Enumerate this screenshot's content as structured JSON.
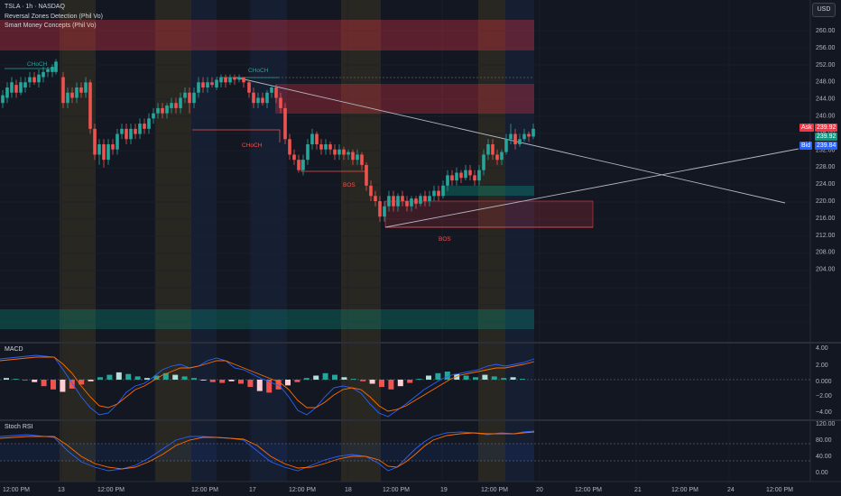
{
  "header": {
    "symbol_line": "TSLA · 1h · NASDAQ",
    "indicators": [
      "Reversal Zones Detection (Phil Vo)",
      "Smart Money Concepts (Phil Vo)"
    ]
  },
  "currency_button": "USD",
  "price_scale": {
    "ticks": [
      "260.00",
      "256.00",
      "252.00",
      "248.00",
      "244.00",
      "240.00",
      "236.00",
      "232.00",
      "228.00",
      "224.00",
      "220.00",
      "216.00",
      "212.00",
      "208.00",
      "204.00"
    ],
    "ask_label": "Ask",
    "ask_value": "239.92",
    "last_value": "239.92",
    "bid_label": "Bid",
    "bid_value": "239.84"
  },
  "macd": {
    "title": "MACD",
    "ticks": [
      "4.00",
      "2.00",
      "0.000",
      "−2.00",
      "−4.00"
    ]
  },
  "stoch": {
    "title": "Stoch RSI",
    "ticks": [
      "120.00",
      "80.00",
      "40.00",
      "0.00"
    ]
  },
  "time_axis": {
    "ticks": [
      "12:00 PM",
      "13",
      "12:00 PM",
      "12:00 PM",
      "17",
      "12:00 PM",
      "18",
      "12:00 PM",
      "19",
      "12:00 PM",
      "20",
      "12:00 PM",
      "21",
      "12:00 PM",
      "24",
      "12:00 PM"
    ]
  },
  "annotations": {
    "choch_1": "CHoCH",
    "choch_2": "CHoCH",
    "choch_3": "CHoCH",
    "bos_1": "BOS",
    "bos_2": "BOS"
  },
  "colors": {
    "background": "#131722",
    "up_candle": "#26a69a",
    "down_candle": "#ef5350",
    "ask": "#f23645",
    "bid": "#2962ff",
    "last": "#089981"
  }
}
